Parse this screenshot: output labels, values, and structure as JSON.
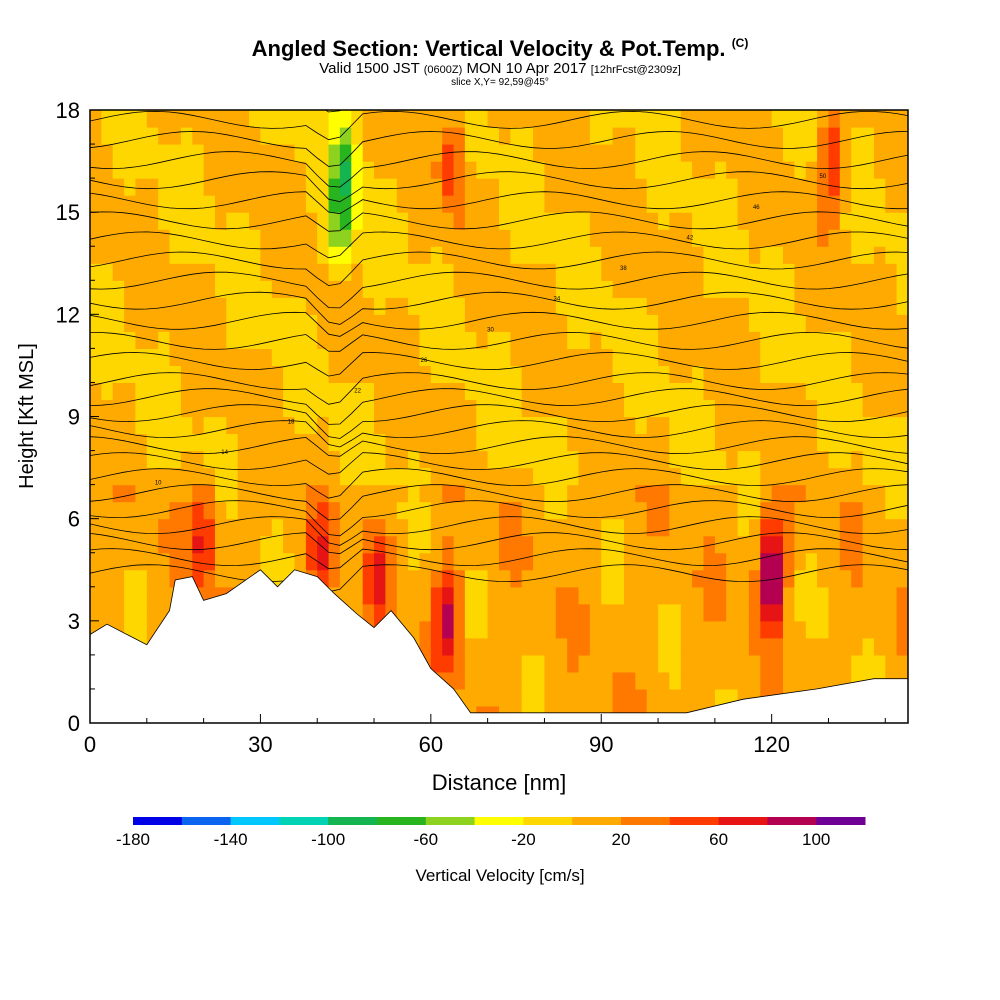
{
  "title": {
    "main": "Angled Section: Vertical Velocity & Pot.Temp.",
    "main_suffix": "(C)",
    "valid_a": "Valid 1500 JST",
    "valid_b": "(0600Z)",
    "valid_c": "MON 10 Apr 2017",
    "valid_d": "[12hrFcst@2309z]",
    "slice": "slice X,Y= 92,59@45°"
  },
  "chart_data": {
    "type": "heatmap",
    "xlabel": "Distance [nm]",
    "ylabel": "Height [Kft MSL]",
    "xlim": [
      0,
      144
    ],
    "ylim": [
      0,
      18
    ],
    "x_ticks": [
      "0",
      "30",
      "60",
      "90",
      "120"
    ],
    "x_tick_values": [
      0,
      30,
      60,
      90,
      120
    ],
    "y_ticks": [
      "0",
      "3",
      "6",
      "9",
      "12",
      "15",
      "18"
    ],
    "y_tick_values": [
      0,
      3,
      6,
      9,
      12,
      15,
      18
    ],
    "colorbar": {
      "label": "Vertical Velocity [cm/s]",
      "min": -180,
      "max": 120,
      "step": 20,
      "tick_labels": [
        "-180",
        "-140",
        "-100",
        "-60",
        "-20",
        "20",
        "60",
        "100"
      ],
      "tick_values": [
        -180,
        -140,
        -100,
        -60,
        -20,
        20,
        60,
        100
      ],
      "colors": [
        "#0000e6",
        "#0a64f0",
        "#00c8ff",
        "#00d2b4",
        "#14b450",
        "#28b41e",
        "#8cd21e",
        "#ffff00",
        "#ffd700",
        "#ffaa00",
        "#ff7800",
        "#ff3c00",
        "#e61414",
        "#b40050",
        "#6e0096"
      ]
    },
    "background_field": "Vertical velocity mostly -20 to 20 cm/s, with narrow updraft columns near 20, 63, 120 and 130 nm and a downdraft (-60 to -80 cm/s) near 40-50 nm above 12 kft",
    "terrain_profile": [
      {
        "x": 0,
        "z": 2.6
      },
      {
        "x": 3,
        "z": 2.9
      },
      {
        "x": 10,
        "z": 2.3
      },
      {
        "x": 14,
        "z": 3.3
      },
      {
        "x": 15,
        "z": 4.2
      },
      {
        "x": 18,
        "z": 4.3
      },
      {
        "x": 20,
        "z": 3.6
      },
      {
        "x": 24,
        "z": 3.8
      },
      {
        "x": 30,
        "z": 4.5
      },
      {
        "x": 33,
        "z": 4.0
      },
      {
        "x": 36,
        "z": 4.5
      },
      {
        "x": 40,
        "z": 4.3
      },
      {
        "x": 43,
        "z": 3.8
      },
      {
        "x": 47,
        "z": 3.2
      },
      {
        "x": 50,
        "z": 2.8
      },
      {
        "x": 53,
        "z": 3.3
      },
      {
        "x": 57,
        "z": 2.5
      },
      {
        "x": 60,
        "z": 1.6
      },
      {
        "x": 64,
        "z": 1.0
      },
      {
        "x": 67,
        "z": 0.3
      },
      {
        "x": 105,
        "z": 0.3
      },
      {
        "x": 115,
        "z": 0.7
      },
      {
        "x": 128,
        "z": 1.0
      },
      {
        "x": 138,
        "z": 1.3
      },
      {
        "x": 144,
        "z": 1.3
      }
    ],
    "updrafts": [
      {
        "x": 20,
        "z": 5.5,
        "w": 60
      },
      {
        "x": 40.5,
        "z": 4.8,
        "w": 50
      },
      {
        "x": 51,
        "z": 4.2,
        "w": 50
      },
      {
        "x": 63,
        "z": 3.2,
        "w": 80
      },
      {
        "x": 64,
        "z": 16.5,
        "w": 55
      },
      {
        "x": 120,
        "z": 4.5,
        "w": 110
      },
      {
        "x": 130.5,
        "z": 16.5,
        "w": 55
      }
    ],
    "downdrafts": [
      {
        "x": 45,
        "z": 16.5,
        "w": -70
      },
      {
        "x": 44,
        "z": 14.5,
        "w": -60
      }
    ],
    "isentrope_labels": [
      "10",
      "14",
      "18",
      "22",
      "26",
      "30",
      "34",
      "38",
      "42",
      "46",
      "50"
    ]
  }
}
